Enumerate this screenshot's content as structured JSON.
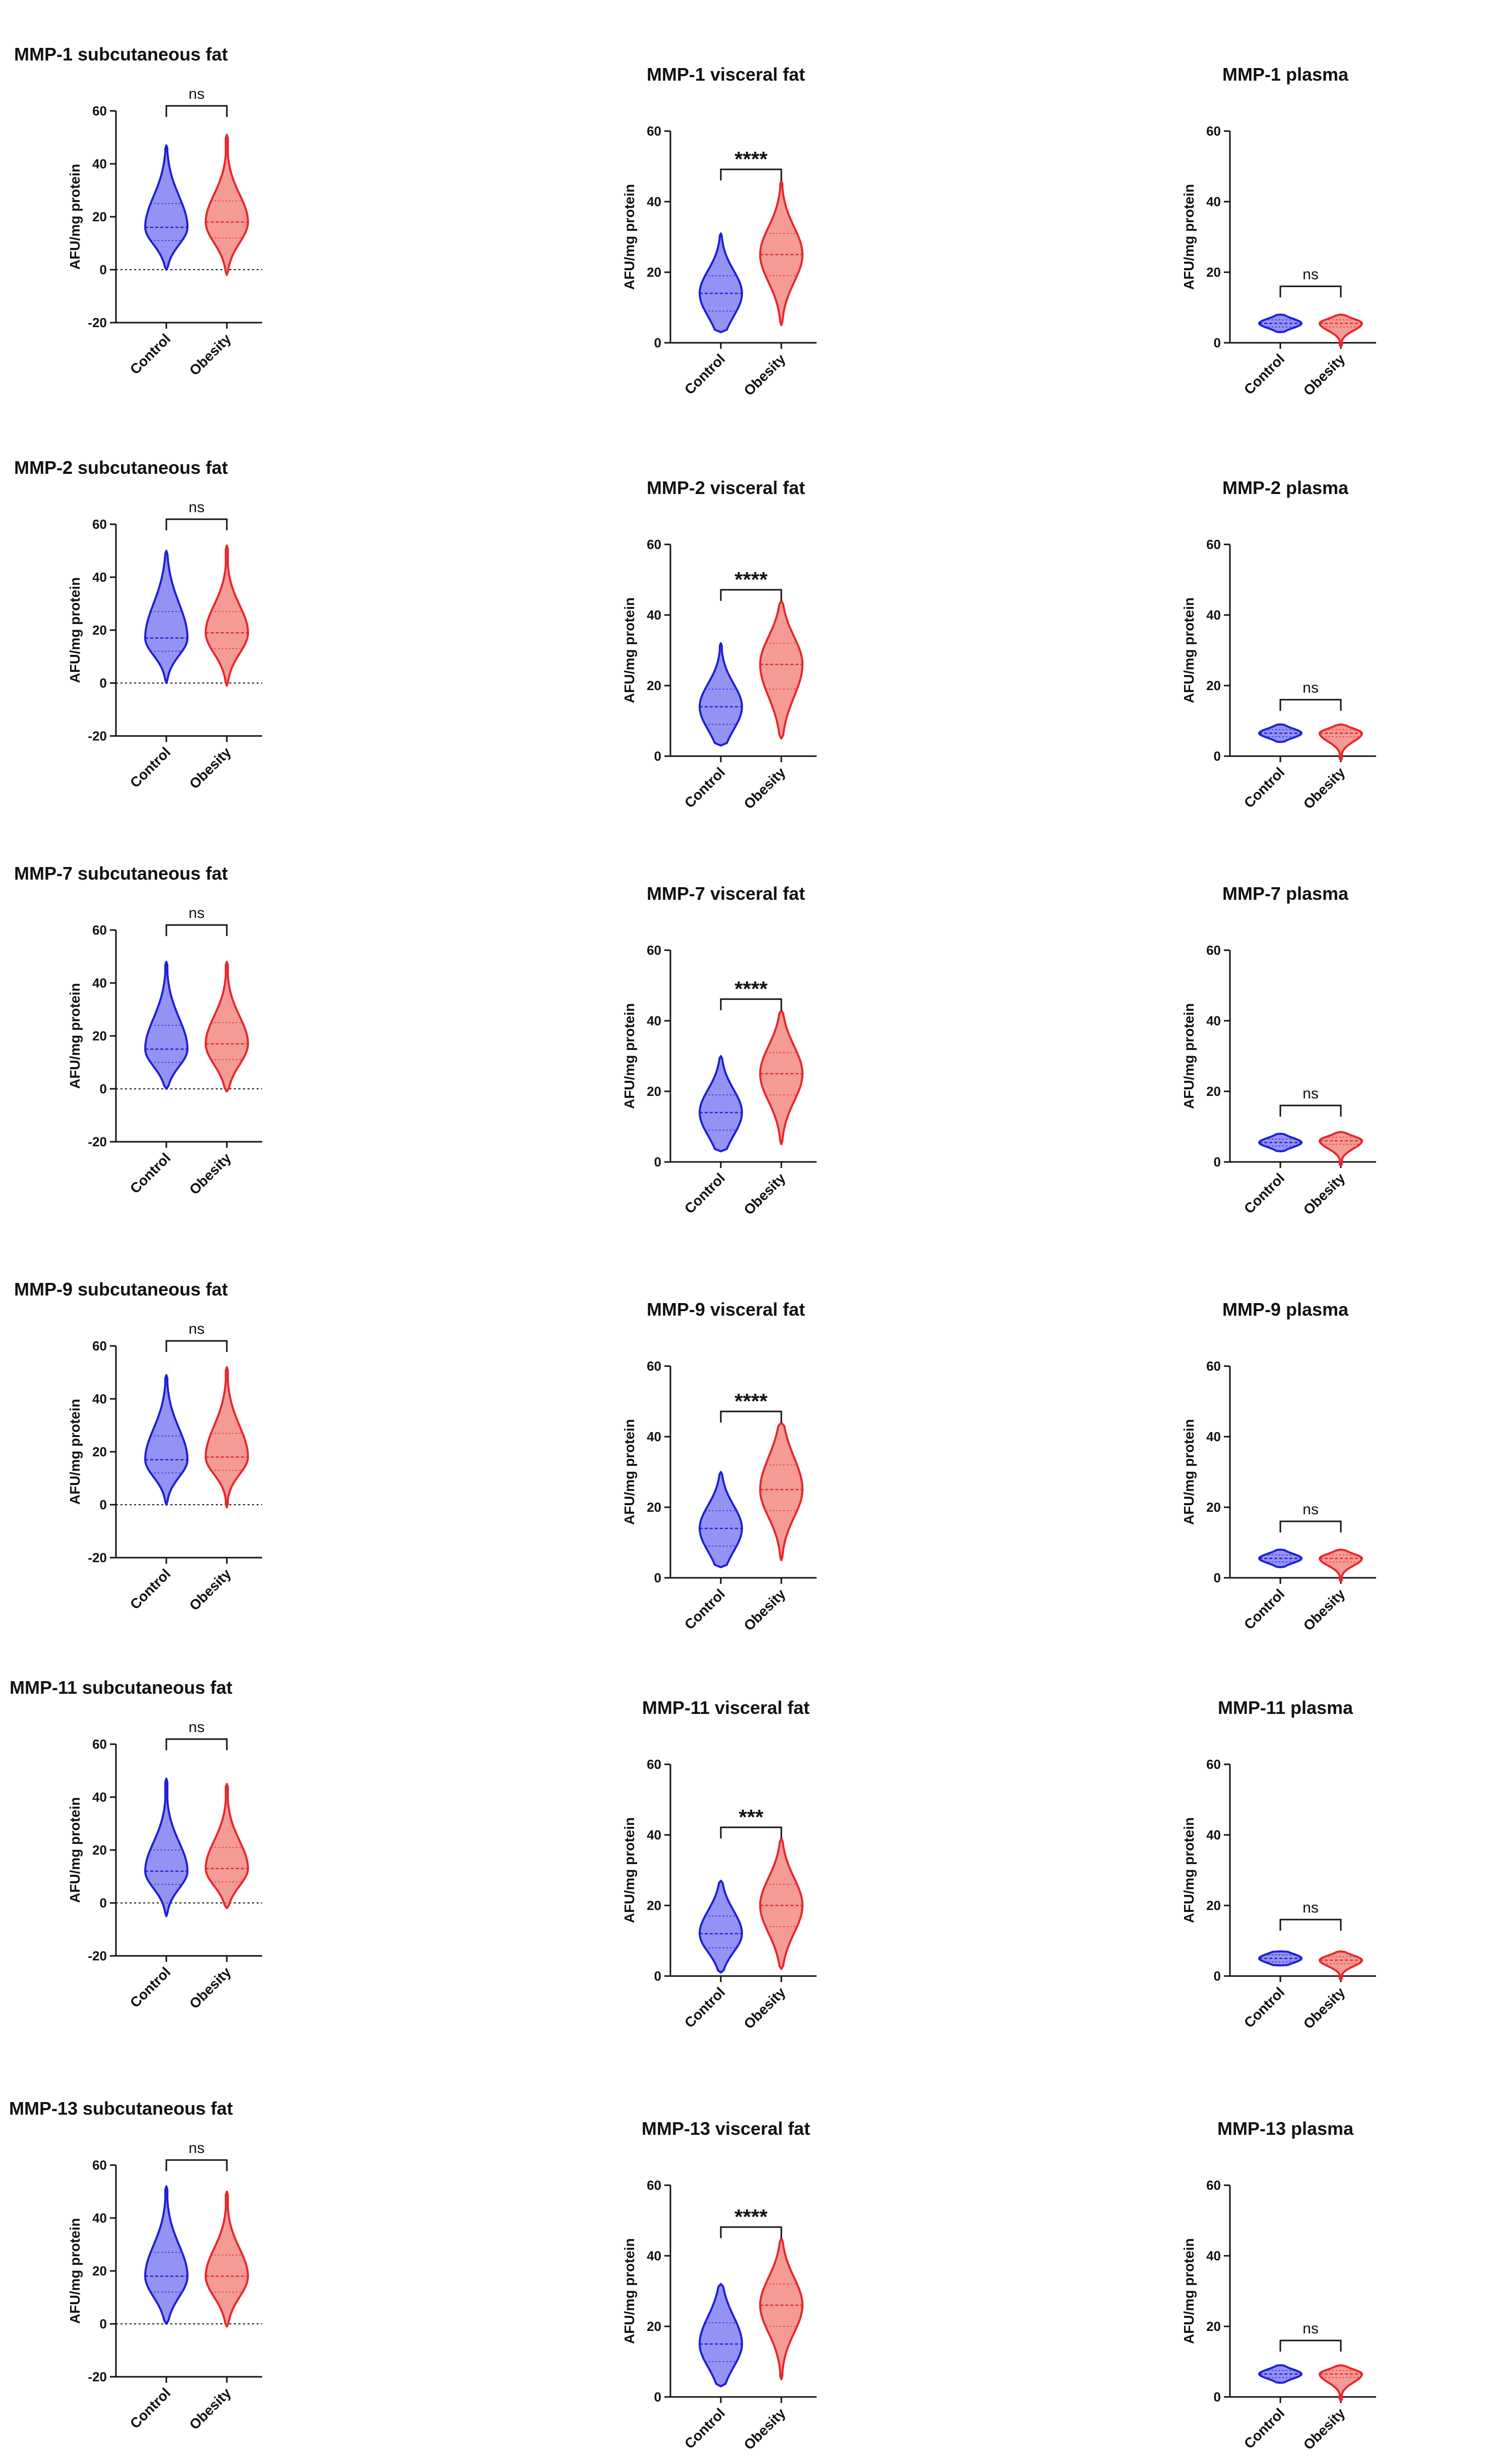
{
  "figure": {
    "y_axis_label": "AFU/mg protein",
    "categories": [
      "Control",
      "Obesity"
    ],
    "colors": {
      "control": "#1f1fd6",
      "control_fill": "#6f6ff0",
      "obesity": "#e8262b",
      "obesity_fill": "#f07a72",
      "axis": "#111111"
    }
  },
  "chart_data": [
    {
      "type": "violin",
      "title": "MMP-1 subcutaneous fat",
      "ylabel": "AFU/mg protein",
      "ylim": [
        -20,
        60
      ],
      "yticks": [
        "-20",
        "0",
        "20",
        "40",
        "60"
      ],
      "categories": [
        "Control",
        "Obesity"
      ],
      "significance": "ns",
      "series": [
        {
          "values": {
            "min": 0,
            "q1": 11,
            "median": 16,
            "q3": 25,
            "max": 47
          }
        },
        {
          "values": {
            "min": -2,
            "q1": 12,
            "median": 18,
            "q3": 26,
            "max": 51
          }
        }
      ]
    },
    {
      "type": "violin",
      "title": "MMP-1 visceral fat",
      "ylabel": "AFU/mg protein",
      "ylim": [
        0,
        60
      ],
      "yticks": [
        "0",
        "20",
        "40",
        "60"
      ],
      "categories": [
        "Control",
        "Obesity"
      ],
      "significance": "****",
      "series": [
        {
          "values": {
            "min": 3,
            "q1": 9,
            "median": 14,
            "q3": 19,
            "max": 31
          }
        },
        {
          "values": {
            "min": 5,
            "q1": 19,
            "median": 25,
            "q3": 31,
            "max": 46
          }
        }
      ]
    },
    {
      "type": "violin",
      "title": "MMP-1 plasma",
      "ylabel": "AFU/mg protein",
      "ylim": [
        0,
        60
      ],
      "yticks": [
        "0",
        "20",
        "40",
        "60"
      ],
      "categories": [
        "Control",
        "Obesity"
      ],
      "significance": "ns",
      "series": [
        {
          "values": {
            "min": 3,
            "q1": 4.5,
            "median": 5.5,
            "q3": 6.5,
            "max": 8
          }
        },
        {
          "values": {
            "min": -1,
            "q1": 4.5,
            "median": 5.5,
            "q3": 6.5,
            "max": 8
          }
        }
      ]
    },
    {
      "type": "violin",
      "title": "MMP-2 subcutaneous fat",
      "ylabel": "AFU/mg protein",
      "ylim": [
        -20,
        60
      ],
      "yticks": [
        "-20",
        "0",
        "20",
        "40",
        "60"
      ],
      "categories": [
        "Control",
        "Obesity"
      ],
      "significance": "ns",
      "series": [
        {
          "values": {
            "min": 0,
            "q1": 12,
            "median": 17,
            "q3": 27,
            "max": 50
          }
        },
        {
          "values": {
            "min": -1,
            "q1": 13,
            "median": 19,
            "q3": 27,
            "max": 52
          }
        }
      ]
    },
    {
      "type": "violin",
      "title": "MMP-2 visceral fat",
      "ylabel": "AFU/mg protein",
      "ylim": [
        0,
        60
      ],
      "yticks": [
        "0",
        "20",
        "40",
        "60"
      ],
      "categories": [
        "Control",
        "Obesity"
      ],
      "significance": "****",
      "series": [
        {
          "values": {
            "min": 3,
            "q1": 9,
            "median": 14,
            "q3": 19,
            "max": 32
          }
        },
        {
          "values": {
            "min": 5,
            "q1": 19,
            "median": 26,
            "q3": 32,
            "max": 44
          }
        }
      ]
    },
    {
      "type": "violin",
      "title": "MMP-2 plasma",
      "ylabel": "AFU/mg protein",
      "ylim": [
        0,
        60
      ],
      "yticks": [
        "0",
        "20",
        "40",
        "60"
      ],
      "categories": [
        "Control",
        "Obesity"
      ],
      "significance": "ns",
      "series": [
        {
          "values": {
            "min": 4,
            "q1": 5.5,
            "median": 6.5,
            "q3": 7.5,
            "max": 9
          }
        },
        {
          "values": {
            "min": -1,
            "q1": 5.5,
            "median": 6.5,
            "q3": 7.5,
            "max": 9
          }
        }
      ]
    },
    {
      "type": "violin",
      "title": "MMP-7 subcutaneous fat",
      "ylabel": "AFU/mg protein",
      "ylim": [
        -20,
        60
      ],
      "yticks": [
        "-20",
        "0",
        "20",
        "40",
        "60"
      ],
      "categories": [
        "Control",
        "Obesity"
      ],
      "significance": "ns",
      "series": [
        {
          "values": {
            "min": 0,
            "q1": 10,
            "median": 15,
            "q3": 24,
            "max": 48
          }
        },
        {
          "values": {
            "min": -1,
            "q1": 11,
            "median": 17,
            "q3": 25,
            "max": 48
          }
        }
      ]
    },
    {
      "type": "violin",
      "title": "MMP-7 visceral fat",
      "ylabel": "AFU/mg protein",
      "ylim": [
        0,
        60
      ],
      "yticks": [
        "0",
        "20",
        "40",
        "60"
      ],
      "categories": [
        "Control",
        "Obesity"
      ],
      "significance": "****",
      "series": [
        {
          "values": {
            "min": 3,
            "q1": 9,
            "median": 14,
            "q3": 19,
            "max": 30
          }
        },
        {
          "values": {
            "min": 5,
            "q1": 19,
            "median": 25,
            "q3": 31,
            "max": 43
          }
        }
      ]
    },
    {
      "type": "violin",
      "title": "MMP-7 plasma",
      "ylabel": "AFU/mg protein",
      "ylim": [
        0,
        60
      ],
      "yticks": [
        "0",
        "20",
        "40",
        "60"
      ],
      "categories": [
        "Control",
        "Obesity"
      ],
      "significance": "ns",
      "series": [
        {
          "values": {
            "min": 3,
            "q1": 4.5,
            "median": 5.5,
            "q3": 6.5,
            "max": 8
          }
        },
        {
          "values": {
            "min": -1,
            "q1": 5,
            "median": 6,
            "q3": 7,
            "max": 8.5
          }
        }
      ]
    },
    {
      "type": "violin",
      "title": "MMP-9 subcutaneous fat",
      "ylabel": "AFU/mg protein",
      "ylim": [
        -20,
        60
      ],
      "yticks": [
        "-20",
        "0",
        "20",
        "40",
        "60"
      ],
      "categories": [
        "Control",
        "Obesity"
      ],
      "significance": "ns",
      "series": [
        {
          "values": {
            "min": 0,
            "q1": 12,
            "median": 17,
            "q3": 26,
            "max": 49
          }
        },
        {
          "values": {
            "min": -1,
            "q1": 13,
            "median": 18,
            "q3": 27,
            "max": 52
          }
        }
      ]
    },
    {
      "type": "violin",
      "title": "MMP-9 visceral fat",
      "ylabel": "AFU/mg protein",
      "ylim": [
        0,
        60
      ],
      "yticks": [
        "0",
        "20",
        "40",
        "60"
      ],
      "categories": [
        "Control",
        "Obesity"
      ],
      "significance": "****",
      "series": [
        {
          "values": {
            "min": 3,
            "q1": 9,
            "median": 14,
            "q3": 19,
            "max": 30
          }
        },
        {
          "values": {
            "min": 5,
            "q1": 19,
            "median": 25,
            "q3": 32,
            "max": 44
          }
        }
      ]
    },
    {
      "type": "violin",
      "title": "MMP-9 plasma",
      "ylabel": "AFU/mg protein",
      "ylim": [
        0,
        60
      ],
      "yticks": [
        "0",
        "20",
        "40",
        "60"
      ],
      "categories": [
        "Control",
        "Obesity"
      ],
      "significance": "ns",
      "series": [
        {
          "values": {
            "min": 3,
            "q1": 4.5,
            "median": 5.5,
            "q3": 6.5,
            "max": 8
          }
        },
        {
          "values": {
            "min": -1,
            "q1": 4.5,
            "median": 5.5,
            "q3": 6.5,
            "max": 8
          }
        }
      ]
    },
    {
      "type": "violin",
      "title": "MMP-11 subcutaneous fat",
      "ylabel": "AFU/mg protein",
      "ylim": [
        -20,
        60
      ],
      "yticks": [
        "-20",
        "0",
        "20",
        "40",
        "60"
      ],
      "categories": [
        "Control",
        "Obesity"
      ],
      "significance": "ns",
      "series": [
        {
          "values": {
            "min": -5,
            "q1": 7,
            "median": 12,
            "q3": 20,
            "max": 47
          }
        },
        {
          "values": {
            "min": -2,
            "q1": 8,
            "median": 13,
            "q3": 21,
            "max": 45
          }
        }
      ]
    },
    {
      "type": "violin",
      "title": "MMP-11 visceral fat",
      "ylabel": "AFU/mg protein",
      "ylim": [
        0,
        60
      ],
      "yticks": [
        "0",
        "20",
        "40",
        "60"
      ],
      "categories": [
        "Control",
        "Obesity"
      ],
      "significance": "***",
      "series": [
        {
          "values": {
            "min": 1,
            "q1": 8,
            "median": 12,
            "q3": 17,
            "max": 27
          }
        },
        {
          "values": {
            "min": 2,
            "q1": 14,
            "median": 20,
            "q3": 26,
            "max": 39
          }
        }
      ]
    },
    {
      "type": "violin",
      "title": "MMP-11 plasma",
      "ylabel": "AFU/mg protein",
      "ylim": [
        0,
        60
      ],
      "yticks": [
        "0",
        "20",
        "40",
        "60"
      ],
      "categories": [
        "Control",
        "Obesity"
      ],
      "significance": "ns",
      "series": [
        {
          "values": {
            "min": 3,
            "q1": 4,
            "median": 5,
            "q3": 6,
            "max": 7
          }
        },
        {
          "values": {
            "min": -1,
            "q1": 3.5,
            "median": 4.5,
            "q3": 5.5,
            "max": 7
          }
        }
      ]
    },
    {
      "type": "violin",
      "title": "MMP-13 subcutaneous fat",
      "ylabel": "AFU/mg protein",
      "ylim": [
        -20,
        60
      ],
      "yticks": [
        "-20",
        "0",
        "20",
        "40",
        "60"
      ],
      "categories": [
        "Control",
        "Obesity"
      ],
      "significance": "ns",
      "series": [
        {
          "values": {
            "min": 0,
            "q1": 12,
            "median": 18,
            "q3": 27,
            "max": 52
          }
        },
        {
          "values": {
            "min": -1,
            "q1": 12,
            "median": 18,
            "q3": 26,
            "max": 50
          }
        }
      ]
    },
    {
      "type": "violin",
      "title": "MMP-13 visceral fat",
      "ylabel": "AFU/mg protein",
      "ylim": [
        0,
        60
      ],
      "yticks": [
        "0",
        "20",
        "40",
        "60"
      ],
      "categories": [
        "Control",
        "Obesity"
      ],
      "significance": "****",
      "series": [
        {
          "values": {
            "min": 3,
            "q1": 10,
            "median": 15,
            "q3": 21,
            "max": 32
          }
        },
        {
          "values": {
            "min": 5,
            "q1": 20,
            "median": 26,
            "q3": 32,
            "max": 45
          }
        }
      ]
    },
    {
      "type": "violin",
      "title": "MMP-13 plasma",
      "ylabel": "AFU/mg protein",
      "ylim": [
        0,
        60
      ],
      "yticks": [
        "0",
        "20",
        "40",
        "60"
      ],
      "categories": [
        "Control",
        "Obesity"
      ],
      "significance": "ns",
      "series": [
        {
          "values": {
            "min": 4,
            "q1": 5.5,
            "median": 6.5,
            "q3": 7.5,
            "max": 9
          }
        },
        {
          "values": {
            "min": -1,
            "q1": 5.5,
            "median": 6.5,
            "q3": 7.5,
            "max": 9
          }
        }
      ]
    }
  ]
}
